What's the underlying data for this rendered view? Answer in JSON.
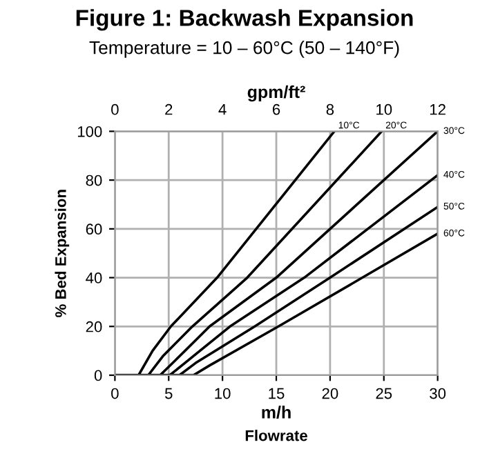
{
  "chart_data": {
    "type": "line",
    "title": "Figure 1: Backwash Expansion",
    "subtitle": "Temperature = 10 – 60°C (50 – 140°F)",
    "xlabel": "m/h",
    "x2label": "gpm/ft²",
    "ylabel": "% Bed Expansion",
    "xlim": [
      0,
      30
    ],
    "xticks": [
      0,
      5,
      10,
      15,
      20,
      25,
      30
    ],
    "x2lim": [
      0,
      12
    ],
    "x2ticks": [
      0,
      2,
      4,
      6,
      8,
      10,
      12
    ],
    "ylim": [
      0,
      100
    ],
    "yticks": [
      0,
      20,
      40,
      60,
      80,
      100
    ],
    "grid": true,
    "line_style": "solid",
    "marker": "none",
    "series": [
      {
        "color": "#000000",
        "x": [
          0,
          2.2,
          3.5,
          5.2,
          9.5,
          20.4
        ],
        "values": [
          0,
          0,
          10,
          20,
          40,
          100
        ]
      },
      {
        "color": "#000000",
        "x": [
          0,
          3.1,
          4.5,
          7.2,
          12.3,
          24.8
        ],
        "values": [
          0,
          0,
          8,
          20,
          40,
          100
        ]
      },
      {
        "color": "#000000",
        "x": [
          0,
          4.2,
          5.6,
          8.8,
          15,
          30
        ],
        "values": [
          0,
          0,
          6,
          20,
          40,
          100
        ]
      },
      {
        "color": "#000000",
        "x": [
          0,
          5.1,
          6.5,
          10.7,
          17.6,
          30
        ],
        "values": [
          0,
          0,
          5,
          20,
          40,
          82
        ]
      },
      {
        "color": "#000000",
        "x": [
          0,
          6,
          7.5,
          13,
          20,
          30
        ],
        "values": [
          0,
          0,
          5,
          20,
          40,
          69
        ]
      },
      {
        "color": "#000000",
        "x": [
          0,
          7.3,
          8.8,
          15.2,
          23,
          30
        ],
        "values": [
          0,
          0,
          4,
          20,
          40,
          58
        ]
      }
    ],
    "annotations": [
      {
        "text": "10°C",
        "x": 20.4,
        "y": 100
      },
      {
        "text": "20°C",
        "x": 24.8,
        "y": 100
      },
      {
        "text": "30°C",
        "x": 30,
        "y": 100
      },
      {
        "text": "40°C",
        "x": 30,
        "y": 82
      },
      {
        "text": "50°C",
        "x": 30,
        "y": 69
      },
      {
        "text": "60°C",
        "x": 30,
        "y": 58
      },
      "Flowrate"
    ]
  }
}
